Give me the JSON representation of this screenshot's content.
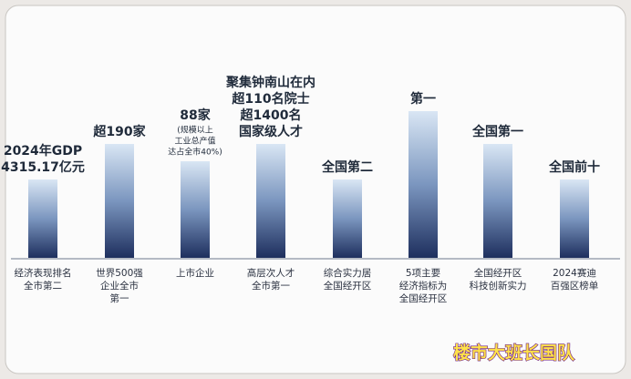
{
  "columns": [
    {
      "top": [
        "2024年GDP",
        "4315.17亿元"
      ],
      "note": [],
      "bottom": [
        "经济表现排名",
        "全市第二"
      ]
    },
    {
      "top": [
        "超190家"
      ],
      "note": [],
      "bottom": [
        "世界500强",
        "企业全市",
        "第一"
      ]
    },
    {
      "top": [
        "88家"
      ],
      "note": [
        "(规模以上",
        "工业总产值",
        "达占全市40%)"
      ],
      "bottom": [
        "上市企业"
      ]
    },
    {
      "top": [
        "聚集钟南山在内",
        "超110名院士",
        "超1400名",
        "国家级人才"
      ],
      "note": [],
      "bottom": [
        "高层次人才",
        "全市第一"
      ]
    },
    {
      "top": [
        "全国第二"
      ],
      "note": [],
      "bottom": [
        "综合实力居",
        "全国经开区"
      ]
    },
    {
      "top": [
        "第一"
      ],
      "note": [],
      "bottom": [
        "5项主要",
        "经济指标为",
        "全国经开区"
      ]
    },
    {
      "top": [
        "全国第一"
      ],
      "note": [],
      "bottom": [
        "全国经开区",
        "科技创新实力"
      ]
    },
    {
      "top": [
        "全国前十"
      ],
      "note": [],
      "bottom": [
        "2024赛迪",
        "百强区榜单"
      ]
    }
  ],
  "watermark": "楼市大班长国队"
}
